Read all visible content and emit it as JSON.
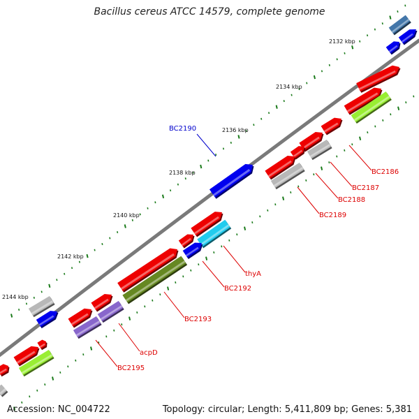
{
  "title": "Bacillus cereus ATCC 14579, complete genome",
  "footer": {
    "accession_label": "Accession:",
    "accession": "NC_004722",
    "topology_label": "Topology:",
    "topology": "circular",
    "length_label": "Length:",
    "length": "5,411,809 bp",
    "genes_label": "Genes:",
    "genes": "5,381"
  },
  "ruler": {
    "ticks": [
      "2132 kbp",
      "2134 kbp",
      "2136 kbp",
      "2138 kbp",
      "2140 kbp",
      "2142 kbp",
      "2144 kbp"
    ]
  },
  "gene_labels": [
    {
      "id": "BC2186",
      "name": "BC2186",
      "color": "#dd0000"
    },
    {
      "id": "BC2187",
      "name": "BC2187",
      "color": "#dd0000"
    },
    {
      "id": "BC2188",
      "name": "BC2188",
      "color": "#dd0000"
    },
    {
      "id": "BC2189",
      "name": "BC2189",
      "color": "#dd0000"
    },
    {
      "id": "BC2190",
      "name": "BC2190",
      "color": "#0000cc"
    },
    {
      "id": "thyA",
      "name": "thyA",
      "color": "#dd0000"
    },
    {
      "id": "BC2192",
      "name": "BC2192",
      "color": "#dd0000"
    },
    {
      "id": "BC2193",
      "name": "BC2193",
      "color": "#dd0000"
    },
    {
      "id": "acpD",
      "name": "acpD",
      "color": "#dd0000"
    },
    {
      "id": "BC2195",
      "name": "BC2195",
      "color": "#dd0000"
    }
  ],
  "colors": {
    "backbone": "#7a7a7a",
    "cds_forward": "#ee0000",
    "cds_reverse": "#0000ee",
    "tick": "#1a7a1a",
    "cog_green": "#99ee33",
    "cog_grey": "#b8b8b8",
    "cog_purple": "#8866cc",
    "cog_cyan": "#22ccee",
    "cog_olive": "#668822",
    "cog_steel": "#4477aa"
  }
}
